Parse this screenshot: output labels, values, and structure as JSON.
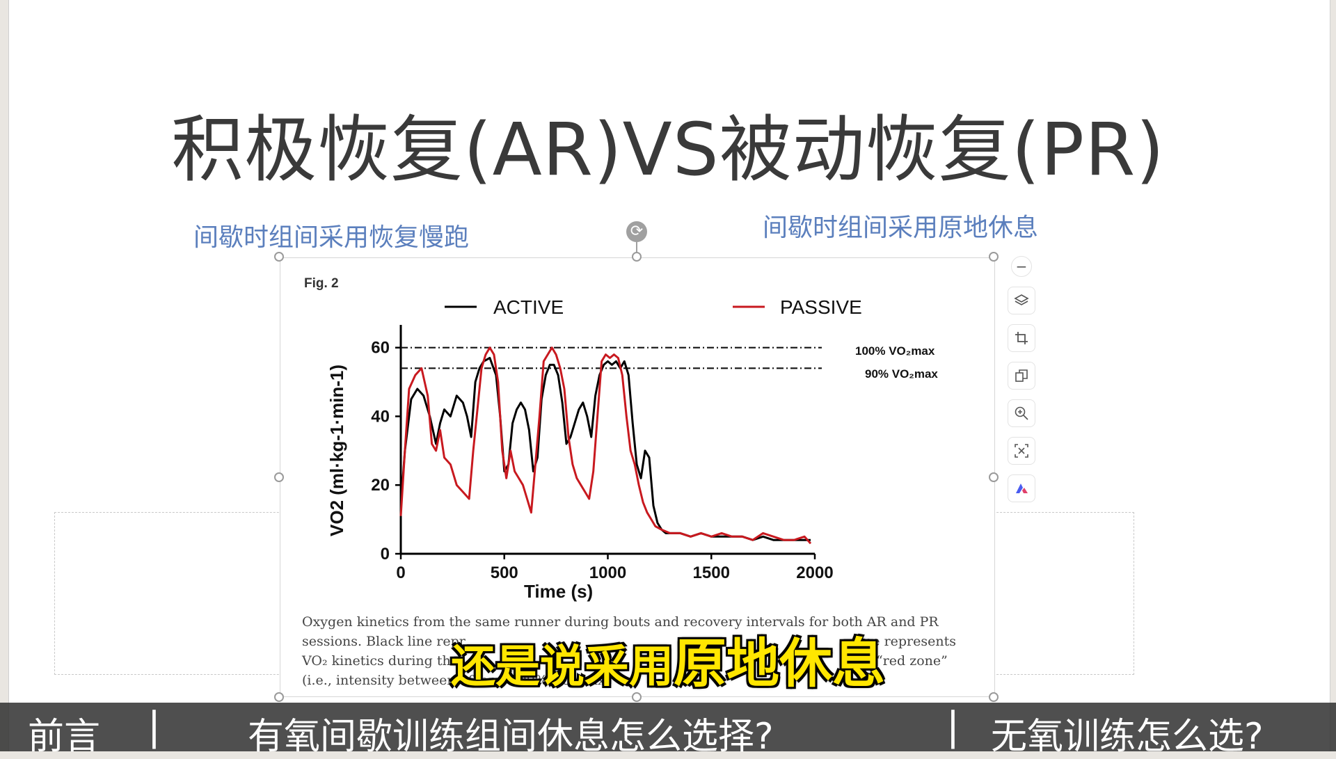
{
  "slide": {
    "title": "积极恢复(AR)VS被动恢复(PR)",
    "left_label": "间歇时组间采用恢复慢跑",
    "right_label": "间歇时组间采用原地休息"
  },
  "figure": {
    "fig_label": "Fig. 2",
    "legend": [
      "ACTIVE",
      "PASSIVE"
    ],
    "ref_lines": [
      "100% VO₂max",
      "90% VO₂max"
    ],
    "caption_lines": [
      "Oxygen kinetics from the same runner during bouts and recovery intervals for both AR and PR",
      "sessions. Black line repr",
      "line represents",
      "VO₂ kinetics during the",
      "“red zone”",
      "(i.e., intensity between 90 and 100% VO₂max)"
    ]
  },
  "chart_data": {
    "type": "line",
    "title": "",
    "xlabel": "Time (s)",
    "ylabel": "VO2 (ml·kg-1·min-1)",
    "xlim": [
      0,
      2000
    ],
    "ylim": [
      0,
      65
    ],
    "xticks": [
      0,
      500,
      1000,
      1500,
      2000
    ],
    "yticks": [
      0,
      20,
      40,
      60
    ],
    "ref_lines": [
      {
        "label": "100% VO2max",
        "y": 60
      },
      {
        "label": "90% VO2max",
        "y": 54
      }
    ],
    "series": [
      {
        "name": "ACTIVE",
        "color": "#000000",
        "x": [
          0,
          20,
          50,
          80,
          110,
          140,
          170,
          190,
          210,
          240,
          270,
          300,
          320,
          340,
          360,
          380,
          400,
          430,
          460,
          480,
          500,
          520,
          540,
          560,
          580,
          600,
          620,
          640,
          660,
          680,
          700,
          720,
          740,
          760,
          780,
          800,
          820,
          840,
          860,
          880,
          900,
          920,
          940,
          960,
          980,
          1000,
          1020,
          1040,
          1060,
          1080,
          1100,
          1120,
          1140,
          1160,
          1180,
          1200,
          1220,
          1240,
          1260,
          1280,
          1300,
          1350,
          1400,
          1450,
          1500,
          1550,
          1600,
          1650,
          1700,
          1750,
          1800,
          1850,
          1900,
          1950,
          1980
        ],
        "values": [
          14,
          30,
          45,
          48,
          46,
          40,
          32,
          38,
          42,
          40,
          46,
          44,
          40,
          34,
          50,
          54,
          56,
          57,
          52,
          40,
          24,
          26,
          38,
          42,
          44,
          42,
          36,
          24,
          28,
          45,
          52,
          55,
          55,
          52,
          44,
          32,
          34,
          38,
          42,
          44,
          40,
          34,
          46,
          52,
          55,
          56,
          55,
          56,
          54,
          56,
          52,
          38,
          26,
          22,
          30,
          28,
          14,
          9,
          7,
          6,
          6,
          6,
          5,
          6,
          5,
          5,
          5,
          5,
          4,
          5,
          4,
          4,
          4,
          4,
          4
        ]
      },
      {
        "name": "PASSIVE",
        "color": "#c8191f",
        "x": [
          0,
          20,
          40,
          70,
          100,
          130,
          150,
          170,
          190,
          210,
          240,
          270,
          300,
          330,
          350,
          370,
          390,
          410,
          430,
          450,
          470,
          490,
          510,
          530,
          550,
          570,
          590,
          610,
          630,
          650,
          670,
          690,
          710,
          730,
          750,
          770,
          790,
          810,
          830,
          850,
          870,
          890,
          910,
          930,
          950,
          970,
          990,
          1010,
          1030,
          1050,
          1070,
          1090,
          1110,
          1130,
          1150,
          1170,
          1190,
          1210,
          1230,
          1260,
          1300,
          1350,
          1400,
          1450,
          1500,
          1550,
          1600,
          1650,
          1700,
          1750,
          1800,
          1850,
          1900,
          1950,
          1980
        ],
        "values": [
          11,
          30,
          48,
          52,
          54,
          46,
          32,
          30,
          36,
          28,
          26,
          20,
          18,
          16,
          30,
          42,
          54,
          58,
          60,
          58,
          50,
          30,
          22,
          30,
          24,
          22,
          20,
          16,
          12,
          26,
          40,
          56,
          58,
          60,
          58,
          54,
          48,
          34,
          26,
          22,
          20,
          18,
          16,
          24,
          40,
          56,
          58,
          57,
          58,
          57,
          52,
          40,
          30,
          26,
          20,
          15,
          12,
          10,
          8,
          7,
          6,
          6,
          5,
          6,
          5,
          6,
          5,
          5,
          4,
          6,
          5,
          4,
          4,
          5,
          3
        ]
      }
    ]
  },
  "overlay": {
    "subtitle_part1": "还是说采用",
    "subtitle_part2": "原地休息"
  },
  "bottom_bar": {
    "item1": "前言",
    "item2": "有氧间歇训练组间休息怎么选择?",
    "item3": "无氧训练怎么选?",
    "separator": "|"
  },
  "toolbar": {
    "icons": [
      "minus-icon",
      "layers-icon",
      "crop-icon",
      "copy-icon",
      "zoom-in-icon",
      "select-text-icon",
      "ai-assistant-icon"
    ]
  }
}
